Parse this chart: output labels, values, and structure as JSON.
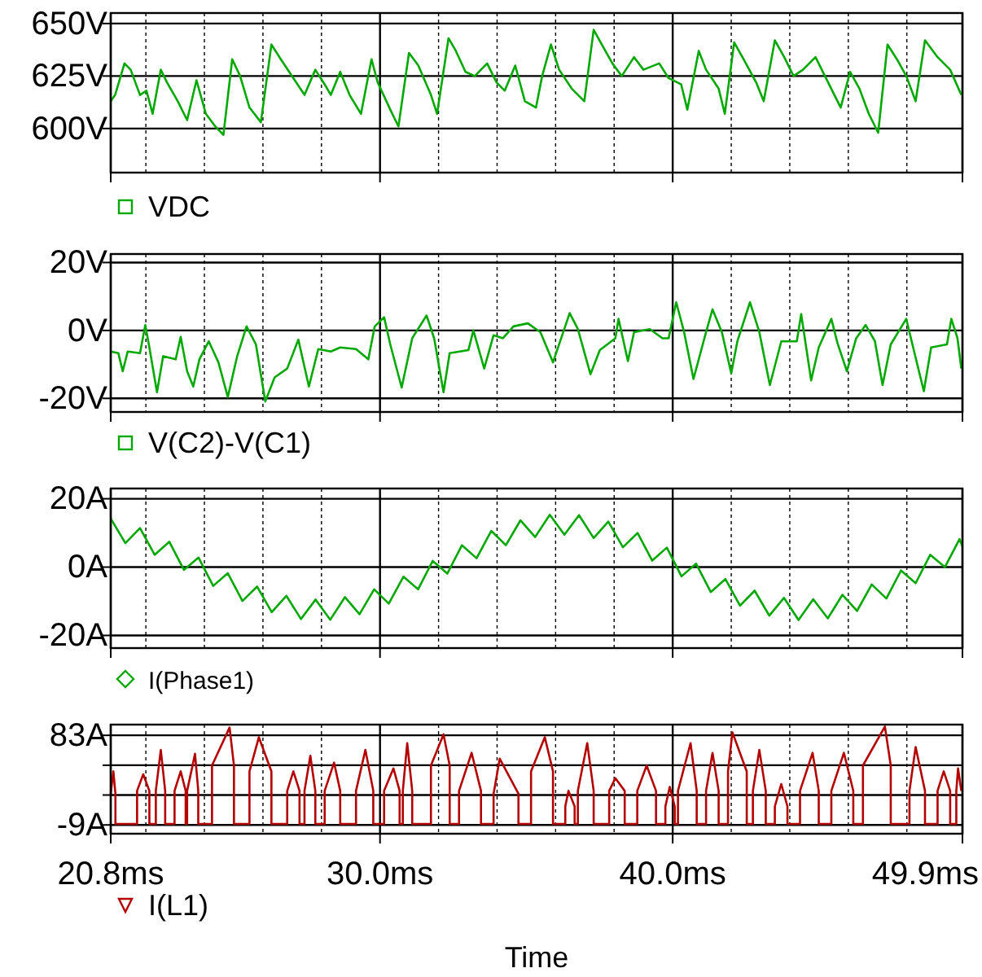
{
  "chart_data": [
    {
      "type": "line",
      "xlim": [
        20.8,
        49.9
      ],
      "xticks": [
        20.8,
        {
          "value": 22,
          "label": null
        },
        {
          "value": 24,
          "label": null
        },
        {
          "value": 26,
          "label": null
        },
        {
          "value": 28,
          "label": null
        },
        30,
        {
          "value": 32,
          "label": null
        },
        {
          "value": 34,
          "label": null
        },
        {
          "value": 36,
          "label": null
        },
        {
          "value": 38,
          "label": null
        },
        40,
        {
          "value": 42,
          "label": null
        },
        {
          "value": 44,
          "label": null
        },
        {
          "value": 46,
          "label": null
        },
        {
          "value": 48,
          "label": null
        },
        49.9
      ],
      "ylim": [
        579,
        655
      ],
      "yticks": [
        {
          "value": 600,
          "label": "600V"
        },
        {
          "value": 625,
          "label": "625V"
        },
        {
          "value": 650,
          "label": "650V"
        }
      ],
      "grid": true,
      "legend": "bottom left",
      "tick_labels": "y",
      "series": [
        {
          "name": "VDC",
          "color": "#00a800",
          "x": [
            20.8,
            20.95,
            21.27,
            21.48,
            21.8,
            22.02,
            22.23,
            22.51,
            22.72,
            23.09,
            23.41,
            23.73,
            24.05,
            24.37,
            24.65,
            24.95,
            25.22,
            25.54,
            25.93,
            26.29,
            26.61,
            27.04,
            27.42,
            27.79,
            28.11,
            28.32,
            28.64,
            28.96,
            29.35,
            29.71,
            29.92,
            30.35,
            30.63,
            30.99,
            31.31,
            31.74,
            31.95,
            32.34,
            32.59,
            32.92,
            33.24,
            33.66,
            33.98,
            34.26,
            34.62,
            34.95,
            35.33,
            35.54,
            35.84,
            36.12,
            36.55,
            36.98,
            37.3,
            37.62,
            37.94,
            38.26,
            38.68,
            39.0,
            39.54,
            39.86,
            40.29,
            40.5,
            40.89,
            41.14,
            41.57,
            41.78,
            42.1,
            42.42,
            42.85,
            43.11,
            43.49,
            43.81,
            44.13,
            44.45,
            44.88,
            45.2,
            45.74,
            46.06,
            46.38,
            46.7,
            47.02,
            47.34,
            47.66,
            47.98,
            48.3,
            48.62,
            49.05,
            49.48,
            49.86
          ],
          "values": [
            613,
            616,
            631,
            628,
            616,
            618,
            607,
            628,
            622,
            613,
            604,
            623,
            607,
            601,
            597,
            633,
            625,
            610,
            603,
            640,
            633,
            624,
            616,
            628,
            621,
            616,
            627,
            616,
            607,
            633,
            622,
            609,
            601,
            636,
            630,
            616,
            607,
            643,
            637,
            627,
            625,
            631,
            622,
            618,
            630,
            613,
            610,
            625,
            640,
            628,
            619,
            613,
            647,
            639,
            631,
            625,
            634,
            628,
            631,
            624,
            621,
            609,
            637,
            628,
            619,
            607,
            641,
            633,
            622,
            613,
            642,
            634,
            625,
            628,
            634,
            625,
            610,
            627,
            619,
            607,
            598,
            640,
            633,
            625,
            613,
            642,
            634,
            628,
            616
          ]
        }
      ]
    },
    {
      "type": "line",
      "xlim": [
        20.8,
        49.9
      ],
      "xticks": [
        20.8,
        {
          "value": 22,
          "label": null
        },
        {
          "value": 24,
          "label": null
        },
        {
          "value": 26,
          "label": null
        },
        {
          "value": 28,
          "label": null
        },
        30,
        {
          "value": 32,
          "label": null
        },
        {
          "value": 34,
          "label": null
        },
        {
          "value": 36,
          "label": null
        },
        {
          "value": 38,
          "label": null
        },
        40,
        {
          "value": 42,
          "label": null
        },
        {
          "value": 44,
          "label": null
        },
        {
          "value": 46,
          "label": null
        },
        {
          "value": 48,
          "label": null
        },
        49.9
      ],
      "ylim": [
        -24,
        22.5
      ],
      "yticks": [
        {
          "value": -20,
          "label": "-20V"
        },
        {
          "value": 0,
          "label": "0V"
        },
        {
          "value": 20,
          "label": "20V"
        }
      ],
      "grid": true,
      "legend": "bottom left",
      "tick_labels": "y",
      "series": [
        {
          "name": "V(C2)-V(C1)",
          "color": "#00a800",
          "x": [
            20.8,
            21.06,
            21.21,
            21.38,
            21.8,
            21.98,
            22.12,
            22.38,
            22.59,
            23.02,
            23.19,
            23.41,
            23.62,
            23.83,
            24.15,
            24.48,
            24.8,
            25.12,
            25.44,
            25.76,
            26.08,
            26.4,
            26.83,
            27.21,
            27.57,
            27.89,
            28.32,
            28.64,
            29.18,
            29.6,
            29.82,
            30.14,
            30.35,
            30.74,
            31.1,
            31.59,
            31.85,
            32.17,
            32.38,
            33.02,
            33.19,
            33.56,
            33.88,
            34.2,
            34.56,
            35.05,
            35.48,
            35.91,
            36.48,
            36.76,
            37.19,
            37.51,
            38.04,
            38.15,
            38.47,
            38.68,
            39.22,
            39.65,
            39.86,
            40.12,
            40.39,
            40.71,
            41.14,
            41.36,
            41.68,
            42.0,
            42.21,
            42.64,
            42.96,
            43.32,
            43.71,
            44.24,
            44.39,
            44.73,
            44.99,
            45.42,
            45.63,
            45.95,
            46.27,
            46.59,
            46.91,
            47.17,
            47.45,
            47.98,
            48.19,
            48.58,
            48.83,
            49.37,
            49.52,
            49.73,
            49.86
          ],
          "values": [
            -6.2,
            -6.7,
            -12.0,
            -6.2,
            -6.7,
            1.6,
            -5.0,
            -18.2,
            -7.6,
            -8.5,
            -1.9,
            -12.0,
            -16.5,
            -8.5,
            -3.2,
            -9.4,
            -19.6,
            -7.6,
            1.2,
            -4.1,
            -20.9,
            -13.8,
            -11.2,
            -2.7,
            -16.5,
            -5.5,
            -6.2,
            -5.0,
            -5.5,
            -8.5,
            1.2,
            3.9,
            -4.1,
            -16.8,
            -2.3,
            4.4,
            -2.3,
            -18.2,
            -6.7,
            -5.8,
            0,
            -11.2,
            -1.4,
            -2.3,
            1.2,
            2.1,
            -0.5,
            -9.4,
            5.1,
            0.4,
            -12.9,
            -5.8,
            -2.3,
            3.4,
            -9.0,
            -0.5,
            0.4,
            -2.3,
            -2.3,
            8.3,
            -0.5,
            -14.3,
            -0.5,
            6.2,
            -0.5,
            -12.6,
            -3.2,
            8.3,
            -0.5,
            -16.1,
            -3.2,
            -3.2,
            4.8,
            -14.7,
            -5.0,
            3.4,
            -3.7,
            -12.0,
            -2.3,
            1.6,
            -3.2,
            -16.1,
            -4.1,
            3.4,
            -4.1,
            -17.9,
            -5.0,
            -4.1,
            3.4,
            -2.3,
            -11.2
          ]
        }
      ]
    },
    {
      "type": "line",
      "xlim": [
        20.8,
        49.9
      ],
      "xticks": [
        20.8,
        {
          "value": 22,
          "label": null
        },
        {
          "value": 24,
          "label": null
        },
        {
          "value": 26,
          "label": null
        },
        {
          "value": 28,
          "label": null
        },
        30,
        {
          "value": 32,
          "label": null
        },
        {
          "value": 34,
          "label": null
        },
        {
          "value": 36,
          "label": null
        },
        {
          "value": 38,
          "label": null
        },
        40,
        {
          "value": 42,
          "label": null
        },
        {
          "value": 44,
          "label": null
        },
        {
          "value": 46,
          "label": null
        },
        {
          "value": 48,
          "label": null
        },
        49.9
      ],
      "ylim": [
        -23.7,
        23
      ],
      "yticks": [
        {
          "value": -20,
          "label": "-20A"
        },
        {
          "value": 0,
          "label": "0A"
        },
        {
          "value": 20,
          "label": "20A"
        }
      ],
      "grid": true,
      "legend": "bottom left",
      "tick_labels": "y",
      "series": [
        {
          "name": "I(Phase1)",
          "color": "#00a800",
          "x": [
            20.8,
            21.3,
            21.8,
            22.3,
            22.8,
            23.3,
            23.8,
            24.3,
            24.8,
            25.3,
            25.8,
            26.3,
            26.8,
            27.3,
            27.8,
            28.3,
            28.8,
            29.3,
            29.8,
            30.3,
            30.8,
            31.3,
            31.8,
            32.3,
            32.8,
            33.3,
            33.8,
            34.3,
            34.8,
            35.3,
            35.8,
            36.3,
            36.8,
            37.3,
            37.8,
            38.3,
            38.8,
            39.3,
            39.8,
            40.3,
            40.8,
            41.3,
            41.8,
            42.3,
            42.8,
            43.3,
            43.8,
            44.3,
            44.8,
            45.3,
            45.8,
            46.3,
            46.8,
            47.3,
            47.8,
            48.3,
            48.8,
            49.3,
            49.8,
            49.9
          ],
          "values": [
            14.2,
            7.0,
            11.4,
            3.6,
            7.4,
            -0.8,
            2.8,
            -5.5,
            -1.8,
            -9.9,
            -5.7,
            -13.2,
            -8.4,
            -15.2,
            -9.5,
            -15.4,
            -8.8,
            -13.8,
            -6.5,
            -10.7,
            -2.8,
            -6.5,
            1.8,
            -1.9,
            6.4,
            2.6,
            10.6,
            6.4,
            13.7,
            8.8,
            15.3,
            9.5,
            15.2,
            8.5,
            13.3,
            5.8,
            10.0,
            1.9,
            5.7,
            -2.7,
            1.0,
            -7.3,
            -3.5,
            -11.3,
            -6.9,
            -14.2,
            -9.0,
            -15.5,
            -9.4,
            -15.0,
            -8.1,
            -12.8,
            -5.1,
            -9.2,
            -1.0,
            -4.7,
            3.6,
            0.0,
            8.2,
            6.0
          ]
        }
      ]
    },
    {
      "type": "line",
      "xlim": [
        20.8,
        49.9
      ],
      "xticks": [
        {
          "value": 20.8,
          "label": "20.8ms"
        },
        {
          "value": 22,
          "label": null
        },
        {
          "value": 24,
          "label": null
        },
        {
          "value": 26,
          "label": null
        },
        {
          "value": 28,
          "label": null
        },
        {
          "value": 30,
          "label": "30.0ms"
        },
        {
          "value": 32,
          "label": null
        },
        {
          "value": 34,
          "label": null
        },
        {
          "value": 36,
          "label": null
        },
        {
          "value": 38,
          "label": null
        },
        {
          "value": 40,
          "label": "40.0ms"
        },
        {
          "value": 42,
          "label": null
        },
        {
          "value": 44,
          "label": null
        },
        {
          "value": 46,
          "label": null
        },
        {
          "value": 48,
          "label": null
        },
        {
          "value": 49.9,
          "label": "49.9ms"
        }
      ],
      "ylim": [
        -18,
        94
      ],
      "yticks": [
        {
          "value": -9,
          "label": "-9A"
        },
        {
          "value": 21.7,
          "label": null
        },
        {
          "value": 52.3,
          "label": null
        },
        {
          "value": 83,
          "label": "83A"
        }
      ],
      "grid": true,
      "legend": "bottom left",
      "xlabel": "Time",
      "series": [
        {
          "name": "I(L1)",
          "color": "#b40000",
          "x": [
            20.8,
            20.89,
            20.96,
            20.96,
            21.7,
            21.7,
            21.91,
            22.12,
            22.12,
            22.34,
            22.34,
            22.51,
            22.66,
            22.66,
            22.98,
            22.98,
            23.19,
            23.36,
            23.36,
            23.41,
            23.41,
            23.68,
            23.79,
            23.79,
            24.26,
            24.26,
            24.86,
            25.01,
            25.01,
            25.54,
            25.54,
            25.86,
            26.29,
            26.29,
            26.83,
            26.83,
            27.04,
            27.25,
            27.25,
            27.42,
            27.42,
            27.62,
            27.79,
            27.79,
            28.11,
            28.11,
            28.43,
            28.64,
            28.64,
            29.18,
            29.18,
            29.5,
            29.77,
            29.77,
            30.14,
            30.14,
            30.46,
            30.67,
            30.67,
            30.78,
            30.78,
            30.93,
            31.1,
            31.1,
            31.74,
            31.74,
            32.17,
            32.38,
            32.38,
            32.7,
            32.7,
            33.13,
            33.45,
            33.45,
            33.88,
            33.88,
            34.09,
            34.73,
            34.73,
            35.16,
            35.16,
            35.63,
            35.91,
            35.91,
            36.33,
            36.33,
            36.44,
            36.65,
            36.65,
            36.76,
            36.76,
            37.08,
            37.3,
            37.3,
            37.83,
            37.83,
            38.04,
            38.36,
            38.36,
            38.79,
            38.79,
            39.11,
            39.43,
            39.43,
            39.75,
            39.75,
            39.9,
            40.07,
            40.07,
            40.18,
            40.18,
            40.61,
            40.82,
            40.82,
            41.14,
            41.14,
            41.36,
            41.57,
            41.57,
            41.89,
            41.89,
            42.04,
            42.53,
            42.53,
            42.74,
            42.74,
            42.96,
            43.18,
            43.18,
            43.49,
            43.49,
            43.71,
            43.92,
            43.92,
            44.35,
            44.35,
            44.78,
            44.99,
            44.99,
            45.42,
            45.42,
            45.85,
            46.17,
            46.17,
            46.5,
            46.5,
            47.25,
            47.45,
            47.45,
            48.09,
            48.09,
            48.3,
            48.62,
            48.62,
            49.05,
            49.05,
            49.26,
            49.48,
            49.48,
            49.69,
            49.69,
            49.75,
            49.86
          ],
          "values": [
            23,
            46,
            23,
            -8,
            -8,
            26,
            43,
            26,
            -8,
            -8,
            26,
            68,
            26,
            -8,
            -8,
            26,
            46,
            26,
            -8,
            -8,
            26,
            64,
            26,
            -8,
            -8,
            52,
            91,
            52,
            -8,
            -8,
            46,
            81,
            46,
            -8,
            -8,
            26,
            46,
            26,
            -8,
            -8,
            26,
            62,
            26,
            -8,
            -8,
            26,
            55,
            26,
            -8,
            -8,
            26,
            68,
            26,
            -8,
            -8,
            26,
            49,
            26,
            -8,
            -8,
            26,
            75,
            26,
            -8,
            -8,
            52,
            84,
            52,
            -8,
            -8,
            26,
            65,
            26,
            -8,
            -8,
            23,
            59,
            23,
            -8,
            -8,
            46,
            81,
            46,
            -8,
            -8,
            10,
            26,
            10,
            -8,
            -8,
            26,
            75,
            26,
            -8,
            -8,
            26,
            39,
            26,
            -8,
            -8,
            26,
            52,
            26,
            -8,
            -8,
            10,
            30,
            10,
            -8,
            -8,
            26,
            75,
            26,
            -8,
            -8,
            26,
            65,
            26,
            -8,
            -8,
            46,
            86,
            46,
            -8,
            -8,
            26,
            68,
            26,
            -8,
            -8,
            10,
            33,
            10,
            -8,
            -8,
            26,
            65,
            26,
            -8,
            -8,
            26,
            65,
            26,
            -8,
            -8,
            52,
            92,
            52,
            -8,
            -8,
            26,
            71,
            26,
            -8,
            -8,
            26,
            46,
            26,
            -8,
            -8,
            26,
            49,
            26
          ]
        }
      ]
    }
  ]
}
